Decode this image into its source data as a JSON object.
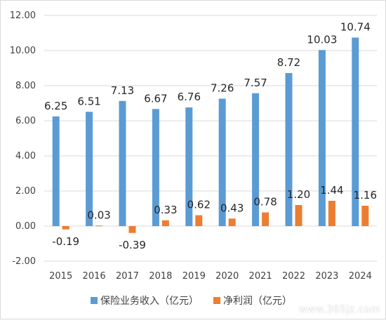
{
  "chart_data": {
    "type": "bar",
    "categories": [
      "2015",
      "2016",
      "2017",
      "2018",
      "2019",
      "2020",
      "2021",
      "2022",
      "2023",
      "2024"
    ],
    "series": [
      {
        "name": "保险业务收入（亿元）",
        "color": "#5b9bd5",
        "values": [
          6.25,
          6.51,
          7.13,
          6.67,
          6.76,
          7.26,
          7.57,
          8.72,
          10.03,
          10.74
        ],
        "labels": [
          "6.25",
          "6.51",
          "7.13",
          "6.67",
          "6.76",
          "7.26",
          "7.57",
          "8.72",
          "10.03",
          "10.74"
        ]
      },
      {
        "name": "净利润（亿元）",
        "color": "#ed7d31",
        "values": [
          -0.19,
          0.03,
          -0.39,
          0.33,
          0.62,
          0.43,
          0.78,
          1.2,
          1.44,
          1.16
        ],
        "labels": [
          "-0.19",
          "0.03",
          "-0.39",
          "0.33",
          "0.62",
          "0.43",
          "0.78",
          "1.20",
          "1.44",
          "1.16"
        ]
      }
    ],
    "ylim": [
      -2,
      12
    ],
    "yticks": [
      "-2.00",
      "0.00",
      "2.00",
      "4.00",
      "6.00",
      "8.00",
      "10.00",
      "12.00"
    ],
    "ytick_values": [
      -2,
      0,
      2,
      4,
      6,
      8,
      10,
      12
    ],
    "grid": true,
    "legend_position": "bottom",
    "title": "",
    "xlabel": "",
    "ylabel": ""
  },
  "watermark": "www.365jz.com"
}
